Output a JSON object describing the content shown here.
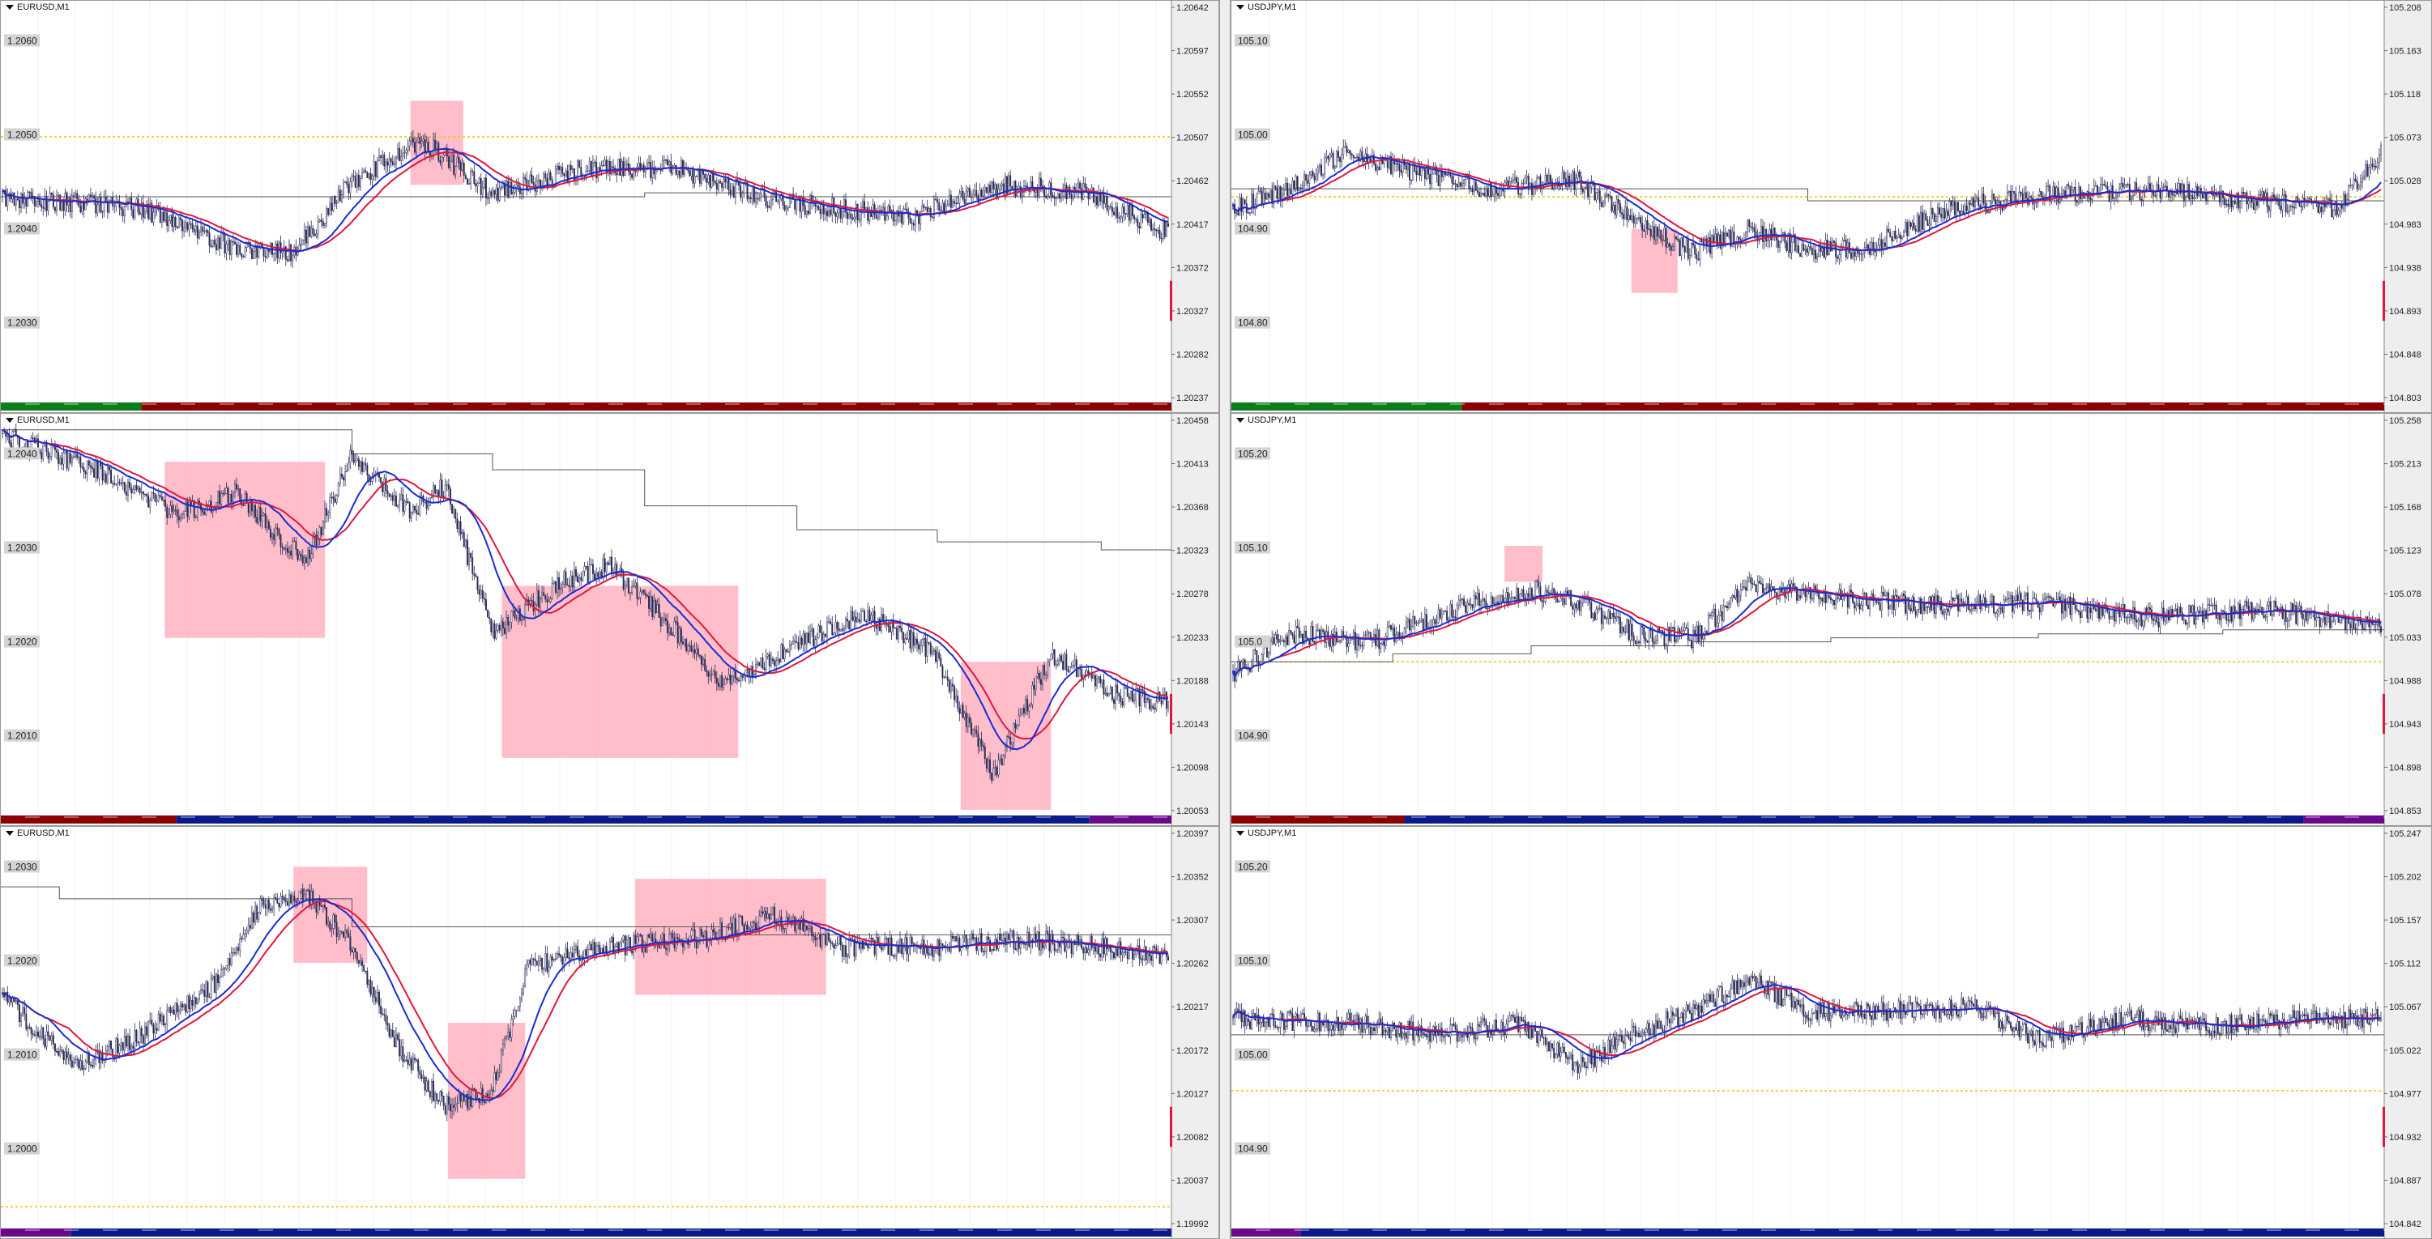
{
  "panes": [
    {
      "symbol": "EURUSD,M1",
      "axis_labels": [
        "1.20642",
        "1.20597",
        "1.20552",
        "1.20507",
        "1.20462",
        "1.20417",
        "1.20372",
        "1.20327",
        "1.20282",
        "1.20237"
      ],
      "price_tags": [
        "1.2060",
        "1.2050",
        "1.2040",
        "1.2030"
      ]
    },
    {
      "symbol": "USDJPY,M1",
      "axis_labels": [
        "105.208",
        "105.163",
        "105.118",
        "105.073",
        "105.028",
        "104.983",
        "104.938",
        "104.893",
        "104.848",
        "104.803"
      ],
      "price_tags": [
        "105.10",
        "105.00",
        "104.90",
        "104.80"
      ]
    },
    {
      "symbol": "EURUSD,M1",
      "axis_labels": [
        "1.20458",
        "1.20413",
        "1.20368",
        "1.20323",
        "1.20278",
        "1.20233",
        "1.20188",
        "1.20143",
        "1.20098",
        "1.20053"
      ],
      "price_tags": [
        "1.2040",
        "1.2030",
        "1.2020",
        "1.2010"
      ]
    },
    {
      "symbol": "USDJPY,M1",
      "axis_labels": [
        "105.258",
        "105.213",
        "105.168",
        "105.123",
        "105.078",
        "105.033",
        "104.988",
        "104.943",
        "104.898",
        "104.853"
      ],
      "price_tags": [
        "105.20",
        "105.10",
        "105.0",
        "104.90"
      ]
    },
    {
      "symbol": "EURUSD,M1",
      "axis_labels": [
        "1.20397",
        "1.20352",
        "1.20307",
        "1.20262",
        "1.20217",
        "1.20172",
        "1.20127",
        "1.20082",
        "1.20037",
        "1.19992"
      ],
      "price_tags": [
        "1.2030",
        "1.2020",
        "1.2010",
        "1.2000"
      ]
    },
    {
      "symbol": "USDJPY,M1",
      "axis_labels": [
        "105.247",
        "105.202",
        "105.157",
        "105.112",
        "105.067",
        "105.022",
        "104.977",
        "104.932",
        "104.887",
        "104.842"
      ],
      "price_tags": [
        "105.20",
        "105.10",
        "105.00",
        "104.90"
      ]
    }
  ],
  "colors": {
    "candles": "#2a2a55",
    "ma_fast": "#1a2bd1",
    "ma_slow": "#e0163a",
    "zone": "#ffb3c1",
    "level_line": "#f2c300",
    "price_tag": "#d4d4d4",
    "axis_bg": "#eeeeee",
    "timebar_red": "#8b0000",
    "timebar_green": "#0b7d1a",
    "timebar_blue": "#0b1a8b",
    "timebar_purple": "#6a0a8b"
  }
}
